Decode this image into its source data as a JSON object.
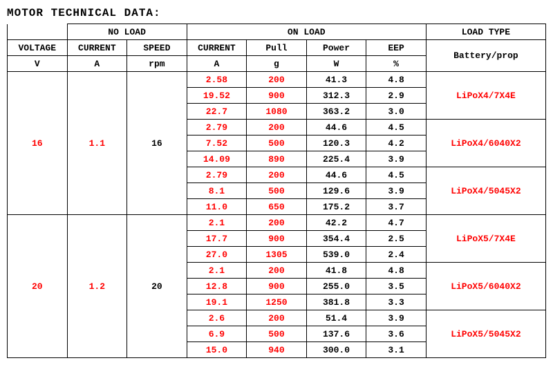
{
  "title": "MOTOR TECHNICAL DATA:",
  "headers": {
    "group_noload": "NO LOAD",
    "group_onload": "ON LOAD",
    "group_loadtype": "LOAD TYPE",
    "voltage": "VOLTAGE",
    "current": "CURRENT",
    "speed": "SPEED",
    "current2": "CURRENT",
    "pull": "Pull",
    "power": "Power",
    "eep": "EEP",
    "battery_prop": "Battery/prop",
    "u_v": "V",
    "u_a": "A",
    "u_rpm": "rpm",
    "u_a2": "A",
    "u_g": "g",
    "u_w": "W",
    "u_pct": "%"
  },
  "blocks": [
    {
      "voltage": "16",
      "noload_current": "1.1",
      "noload_speed": "16",
      "groups": [
        {
          "load_type": "LiPoX4/7X4E",
          "rows": [
            {
              "current": "2.58",
              "pull": "200",
              "power": "41.3",
              "eep": "4.8"
            },
            {
              "current": "19.52",
              "pull": "900",
              "power": "312.3",
              "eep": "2.9"
            },
            {
              "current": "22.7",
              "pull": "1080",
              "power": "363.2",
              "eep": "3.0"
            }
          ]
        },
        {
          "load_type": "LiPoX4/6040X2",
          "rows": [
            {
              "current": "2.79",
              "pull": "200",
              "power": "44.6",
              "eep": "4.5"
            },
            {
              "current": "7.52",
              "pull": "500",
              "power": "120.3",
              "eep": "4.2"
            },
            {
              "current": "14.09",
              "pull": "890",
              "power": "225.4",
              "eep": "3.9"
            }
          ]
        },
        {
          "load_type": "LiPoX4/5045X2",
          "rows": [
            {
              "current": "2.79",
              "pull": "200",
              "power": "44.6",
              "eep": "4.5"
            },
            {
              "current": "8.1",
              "pull": "500",
              "power": "129.6",
              "eep": "3.9"
            },
            {
              "current": "11.0",
              "pull": "650",
              "power": "175.2",
              "eep": "3.7"
            }
          ]
        }
      ]
    },
    {
      "voltage": "20",
      "noload_current": "1.2",
      "noload_speed": "20",
      "groups": [
        {
          "load_type": "LiPoX5/7X4E",
          "rows": [
            {
              "current": "2.1",
              "pull": "200",
              "power": "42.2",
              "eep": "4.7"
            },
            {
              "current": "17.7",
              "pull": "900",
              "power": "354.4",
              "eep": "2.5"
            },
            {
              "current": "27.0",
              "pull": "1305",
              "power": "539.0",
              "eep": "2.4"
            }
          ]
        },
        {
          "load_type": "LiPoX5/6040X2",
          "rows": [
            {
              "current": "2.1",
              "pull": "200",
              "power": "41.8",
              "eep": "4.8"
            },
            {
              "current": "12.8",
              "pull": "900",
              "power": "255.0",
              "eep": "3.5"
            },
            {
              "current": "19.1",
              "pull": "1250",
              "power": "381.8",
              "eep": "3.3"
            }
          ]
        },
        {
          "load_type": "LiPoX5/5045X2",
          "rows": [
            {
              "current": "2.6",
              "pull": "200",
              "power": "51.4",
              "eep": "3.9"
            },
            {
              "current": "6.9",
              "pull": "500",
              "power": "137.6",
              "eep": "3.6"
            },
            {
              "current": "15.0",
              "pull": "940",
              "power": "300.0",
              "eep": "3.1"
            }
          ]
        }
      ]
    }
  ]
}
